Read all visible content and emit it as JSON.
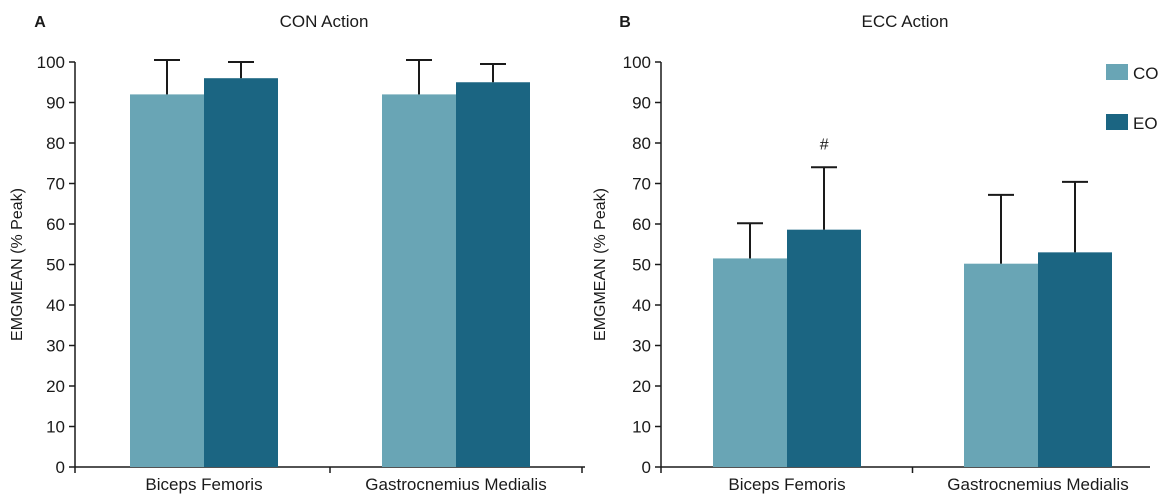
{
  "colors": {
    "CO": "#69a5b5",
    "EO": "#1b6582"
  },
  "legend": [
    {
      "key": "CO",
      "label": "CO"
    },
    {
      "key": "EO",
      "label": "EO"
    }
  ],
  "chart_data": [
    {
      "type": "bar",
      "panel": "A",
      "title": "CON Action",
      "ylabel": "EMGMEAN (% Peak)",
      "xlabel": "",
      "ylim": [
        0,
        100
      ],
      "yticks": [
        0,
        10,
        20,
        30,
        40,
        50,
        60,
        70,
        80,
        90,
        100
      ],
      "categories": [
        "Biceps Femoris",
        "Gastrocnemius Medialis"
      ],
      "series": [
        {
          "name": "CO",
          "values": [
            92,
            92
          ],
          "errors": [
            8.5,
            8.5
          ]
        },
        {
          "name": "EO",
          "values": [
            96,
            95
          ],
          "errors": [
            4,
            4.5
          ]
        }
      ],
      "annotations": [],
      "legend_position": "none",
      "grid": false
    },
    {
      "type": "bar",
      "panel": "B",
      "title": "ECC Action",
      "ylabel": "EMGMEAN (% Peak)",
      "xlabel": "",
      "ylim": [
        0,
        100
      ],
      "yticks": [
        0,
        10,
        20,
        30,
        40,
        50,
        60,
        70,
        80,
        90,
        100
      ],
      "categories": [
        "Biceps Femoris",
        "Gastrocnemius Medialis"
      ],
      "series": [
        {
          "name": "CO",
          "values": [
            51.5,
            50.2
          ],
          "errors": [
            8.7,
            17
          ]
        },
        {
          "name": "EO",
          "values": [
            58.6,
            53
          ],
          "errors": [
            15.4,
            17.4
          ]
        }
      ],
      "annotations": [
        {
          "category": "Biceps Femoris",
          "series": "EO",
          "text": "#"
        }
      ],
      "legend_position": "top-right",
      "grid": false
    }
  ]
}
